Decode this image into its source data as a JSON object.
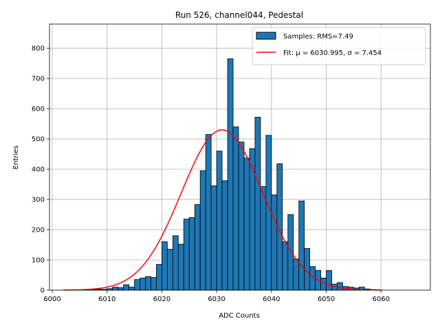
{
  "chart_data": {
    "type": "bar",
    "title": "Run 526, channel044, Pedestal",
    "xlabel": "ADC Counts",
    "ylabel": "Entries",
    "xlim": [
      5999.5,
      6069.0
    ],
    "ylim": [
      0,
      880
    ],
    "xticks": [
      6000,
      6010,
      6020,
      6030,
      6040,
      6050,
      6060
    ],
    "yticks": [
      0,
      100,
      200,
      300,
      400,
      500,
      600,
      700,
      800
    ],
    "grid": true,
    "legend_position": "top-right",
    "histogram": {
      "name": "Samples: RMS=7.49",
      "color": "#1f77b4",
      "edge_color": "#000000",
      "bin_start": 6002,
      "bin_width": 1,
      "counts": [
        0,
        0,
        0,
        0,
        1,
        2,
        3,
        3,
        5,
        10,
        8,
        18,
        10,
        35,
        40,
        45,
        42,
        85,
        160,
        135,
        180,
        152,
        235,
        240,
        283,
        395,
        515,
        345,
        460,
        362,
        765,
        540,
        490,
        437,
        468,
        572,
        343,
        512,
        315,
        418,
        160,
        250,
        103,
        295,
        138,
        78,
        65,
        40,
        65,
        20,
        25,
        12,
        10,
        7,
        10,
        4,
        2,
        1,
        0,
        0
      ]
    },
    "fit": {
      "name": "Fit: μ = 6030.995, σ = 7.454",
      "color": "#ff0000",
      "mu": 6030.995,
      "sigma": 7.454,
      "amplitude": 530,
      "x_range": [
        6002,
        6060
      ]
    }
  }
}
